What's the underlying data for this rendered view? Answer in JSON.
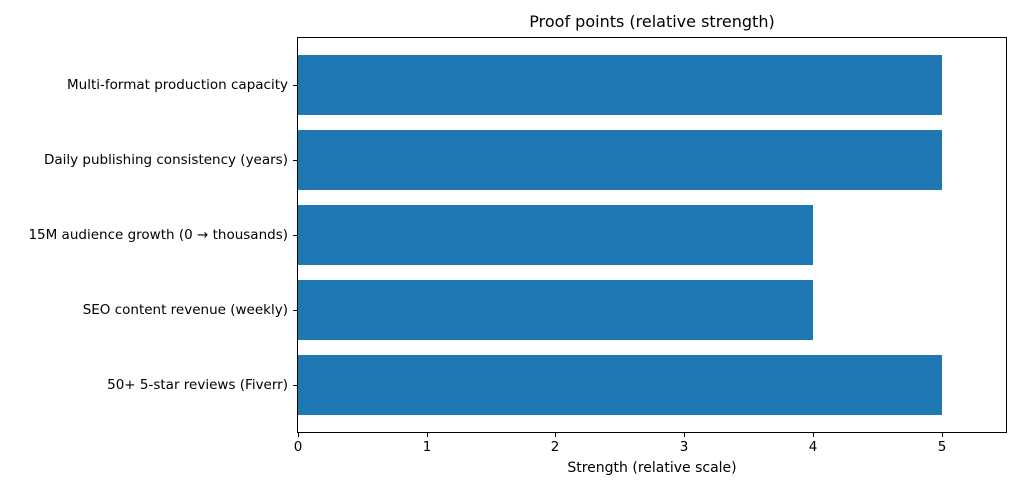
{
  "chart_data": {
    "type": "bar",
    "orientation": "horizontal",
    "title": "Proof points (relative strength)",
    "xlabel": "Strength (relative scale)",
    "ylabel": "",
    "categories": [
      "Multi-format production capacity",
      "Daily publishing consistency (years)",
      "15M audience growth (0 → thousands)",
      "SEO content revenue (weekly)",
      "50+ 5-star reviews (Fiverr)"
    ],
    "values": [
      5,
      5,
      4,
      4,
      5
    ],
    "xticks": [
      "0",
      "1",
      "2",
      "3",
      "4",
      "5"
    ],
    "xtick_values": [
      0,
      1,
      2,
      3,
      4,
      5
    ],
    "xlim": [
      0,
      5.5
    ],
    "bar_color": "#1f77b4",
    "grid": false,
    "legend_position": "none",
    "background_color": "#ffffff",
    "spine_color": "#000000"
  }
}
